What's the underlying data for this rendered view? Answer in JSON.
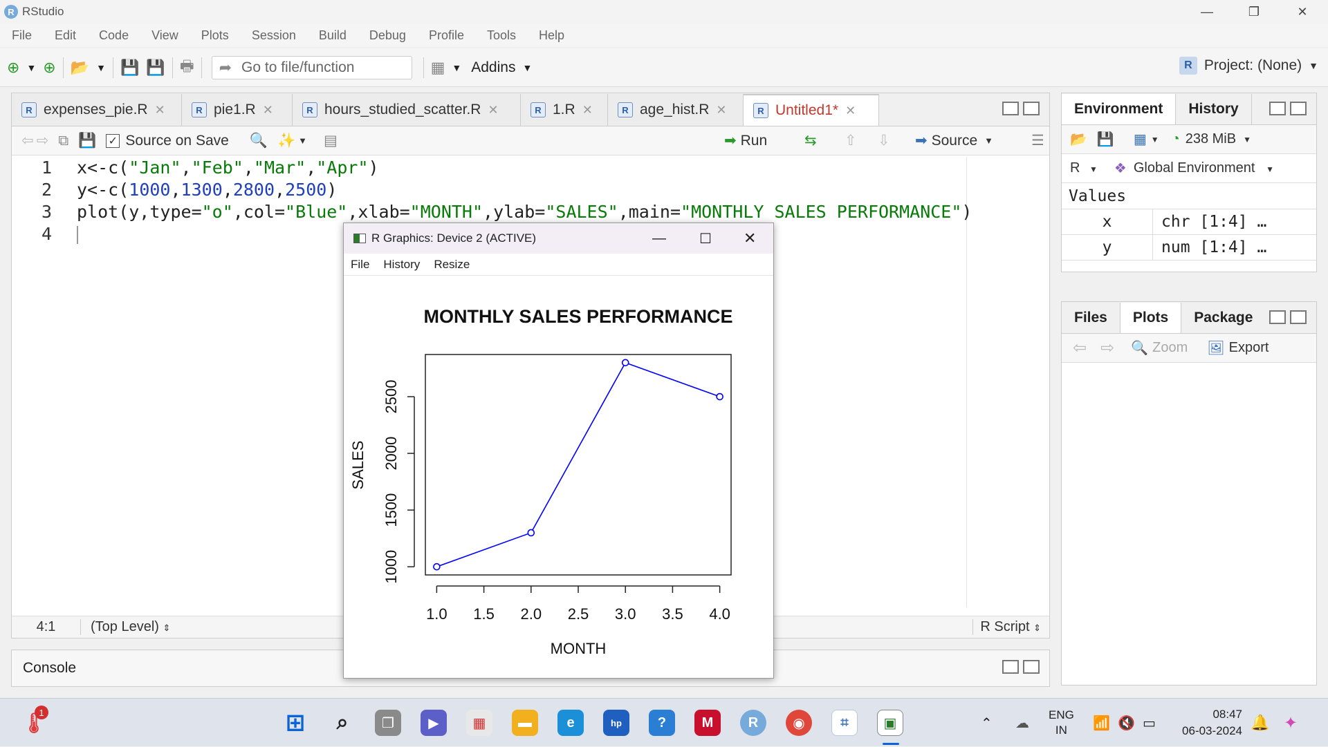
{
  "app": {
    "title": "RStudio"
  },
  "menu": [
    "File",
    "Edit",
    "Code",
    "View",
    "Plots",
    "Session",
    "Build",
    "Debug",
    "Profile",
    "Tools",
    "Help"
  ],
  "toolbar": {
    "goto_placeholder": "Go to file/function",
    "addins": "Addins",
    "project": "Project: (None)"
  },
  "editor": {
    "tabs": [
      {
        "label": "expenses_pie.R"
      },
      {
        "label": "pie1.R"
      },
      {
        "label": "hours_studied_scatter.R"
      },
      {
        "label": "1.R"
      },
      {
        "label": "age_hist.R"
      },
      {
        "label": "Untitled1*"
      }
    ],
    "source_on_save": "Source on Save",
    "run": "Run",
    "source": "Source",
    "line_numbers": [
      "1",
      "2",
      "3",
      "4"
    ],
    "status": {
      "position": "4:1",
      "scope": "(Top Level)",
      "filetype": "R Script"
    }
  },
  "code": {
    "l1": {
      "a": "x<-c(",
      "b": "\"Jan\"",
      "c": ",",
      "d": "\"Feb\"",
      "e": ",",
      "f": "\"Mar\"",
      "g": ",",
      "h": "\"Apr\"",
      "i": ")"
    },
    "l2": {
      "a": "y<-c(",
      "b": "1000",
      "c": ",",
      "d": "1300",
      "e": ",",
      "f": "2800",
      "g": ",",
      "h": "2500",
      "i": ")"
    },
    "l3": {
      "a": "plot(y,type=",
      "b": "\"o\"",
      "c": ",col=",
      "d": "\"Blue\"",
      "e": ",xlab=",
      "f": "\"MONTH\"",
      "g": ",ylab=",
      "h": "\"SALES\"",
      "i": ",main=",
      "j": "\"MONTHLY SALES PERFORMANCE\"",
      "k": ")"
    }
  },
  "console": {
    "label": "Console"
  },
  "environment": {
    "tabs": [
      "Environment",
      "History"
    ],
    "memory": "238 MiB",
    "lang": "R",
    "scope": "Global Environment",
    "section": "Values",
    "rows": [
      {
        "name": "x",
        "value": "chr [1:4] …"
      },
      {
        "name": "y",
        "value": "num [1:4] …"
      }
    ]
  },
  "files": {
    "tabs": [
      "Files",
      "Plots",
      "Package"
    ],
    "zoom": "Zoom",
    "export": "Export"
  },
  "graphics": {
    "title": "R Graphics: Device 2 (ACTIVE)",
    "menu": [
      "File",
      "History",
      "Resize"
    ]
  },
  "chart_data": {
    "type": "line",
    "title": "MONTHLY SALES PERFORMANCE",
    "xlabel": "MONTH",
    "ylabel": "SALES",
    "x": [
      1,
      2,
      3,
      4
    ],
    "values": [
      1000,
      1300,
      2800,
      2500
    ],
    "xticks": [
      "1.0",
      "1.5",
      "2.0",
      "2.5",
      "3.0",
      "3.5",
      "4.0"
    ],
    "yticks": [
      "1000",
      "1500",
      "2000",
      "2500"
    ],
    "xlim": [
      1,
      4
    ],
    "ylim": [
      1000,
      2800
    ],
    "color": "#0000ff",
    "markers": "open-circle"
  },
  "taskbar": {
    "lang1": "ENG",
    "lang2": "IN",
    "time": "08:47",
    "date": "06-03-2024",
    "badge": "1"
  }
}
